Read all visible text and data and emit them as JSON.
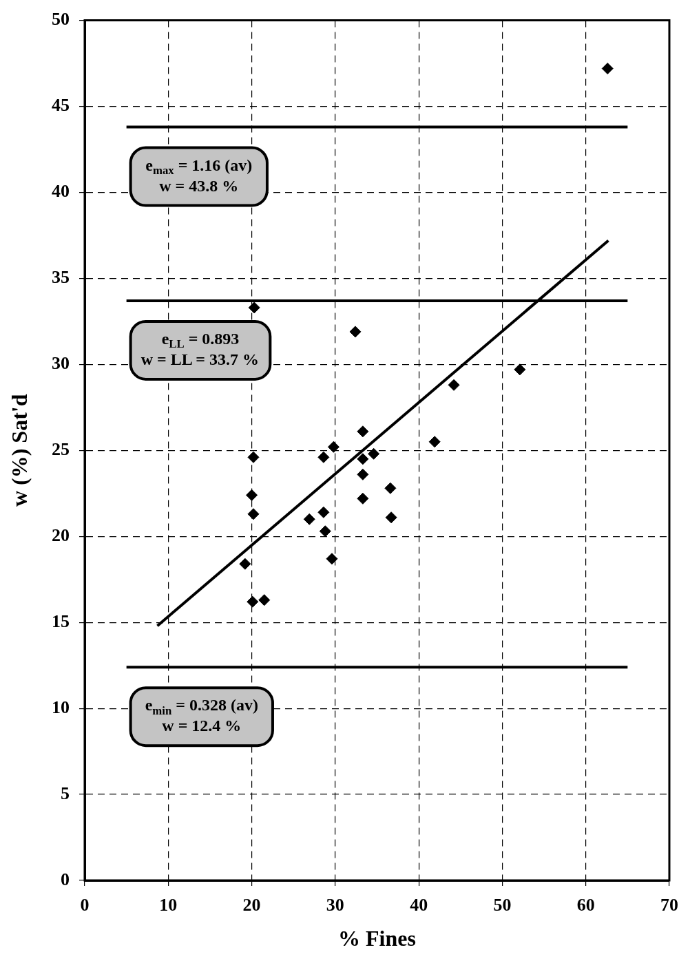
{
  "chart_data": {
    "type": "scatter",
    "xlabel": "% Fines",
    "ylabel": "w (%) Sat'd",
    "xlim": [
      0,
      70
    ],
    "ylim": [
      0,
      50
    ],
    "xticks": [
      0,
      10,
      20,
      30,
      40,
      50,
      60,
      70
    ],
    "yticks": [
      0,
      5,
      10,
      15,
      20,
      25,
      30,
      35,
      40,
      45,
      50
    ],
    "grid": true,
    "series": [
      {
        "type": "scatter",
        "marker": "diamond",
        "color": "#000000",
        "x": [
          62.6,
          52.1,
          44.2,
          41.9,
          36.6,
          36.7,
          34.6,
          33.3,
          33.3,
          33.3,
          33.3,
          32.4,
          29.8,
          29.6,
          28.6,
          28.6,
          28.8,
          26.9,
          21.5,
          20.3,
          20.2,
          20.0,
          20.2,
          20.1,
          19.2
        ],
        "values": [
          47.2,
          29.7,
          28.8,
          25.5,
          22.8,
          21.1,
          24.8,
          26.1,
          24.5,
          23.6,
          22.2,
          31.9,
          25.2,
          18.7,
          24.6,
          21.4,
          20.3,
          21.0,
          16.3,
          33.3,
          24.6,
          22.4,
          21.3,
          16.2,
          18.4
        ]
      },
      {
        "type": "line",
        "color": "#000000",
        "x": [
          8.7,
          62.7
        ],
        "values": [
          14.8,
          37.2
        ]
      },
      {
        "type": "line",
        "color": "#000000",
        "x": [
          5,
          65
        ],
        "values": [
          43.8,
          43.8
        ]
      },
      {
        "type": "line",
        "color": "#000000",
        "x": [
          5,
          65
        ],
        "values": [
          33.7,
          33.7
        ]
      },
      {
        "type": "line",
        "color": "#000000",
        "x": [
          5,
          65
        ],
        "values": [
          12.4,
          12.4
        ]
      }
    ],
    "annotations": [
      "e$_{max}$ = 1.16 (av)\nw = 43.8 %",
      "e$_{LL}$ = 0.893\nw = LL = 33.7 %",
      "e$_{min}$ = 0.328 (av)\nw = 12.4 %"
    ]
  }
}
